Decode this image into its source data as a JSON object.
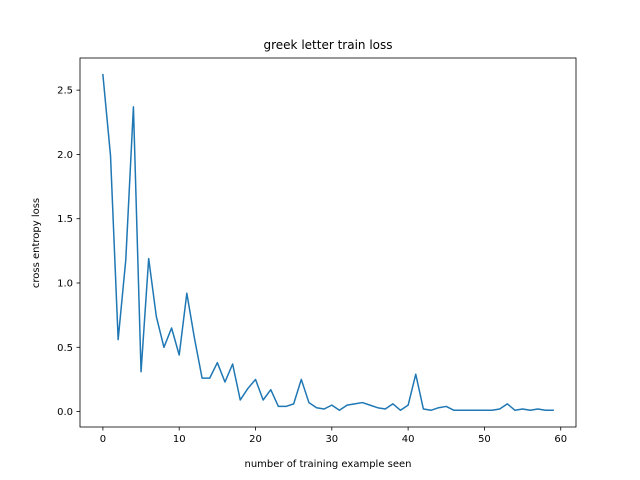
{
  "chart_data": {
    "type": "line",
    "title": "greek letter train loss",
    "xlabel": "number of training example seen",
    "ylabel": "cross entropy loss",
    "xlim": [
      -3,
      62
    ],
    "ylim": [
      -0.12,
      2.75
    ],
    "xticks": [
      0,
      10,
      20,
      30,
      40,
      50,
      60
    ],
    "yticks": [
      0.0,
      0.5,
      1.0,
      1.5,
      2.0,
      2.5
    ],
    "xtick_labels": [
      "0",
      "10",
      "20",
      "30",
      "40",
      "50",
      "60"
    ],
    "ytick_labels": [
      "0.0",
      "0.5",
      "1.0",
      "1.5",
      "2.0",
      "2.5"
    ],
    "grid": false,
    "series": [
      {
        "color": "#1f77b4",
        "x": [
          0,
          1,
          2,
          3,
          4,
          5,
          6,
          7,
          8,
          9,
          10,
          11,
          12,
          13,
          14,
          15,
          16,
          17,
          18,
          19,
          20,
          21,
          22,
          23,
          24,
          25,
          26,
          27,
          28,
          29,
          30,
          31,
          32,
          33,
          34,
          35,
          36,
          37,
          38,
          39,
          40,
          41,
          42,
          43,
          44,
          45,
          46,
          47,
          48,
          49,
          50,
          51,
          52,
          53,
          54,
          55,
          56,
          57,
          58,
          59
        ],
        "y": [
          2.62,
          1.99,
          0.56,
          1.18,
          2.37,
          0.31,
          1.19,
          0.74,
          0.5,
          0.65,
          0.44,
          0.92,
          0.57,
          0.26,
          0.26,
          0.38,
          0.23,
          0.37,
          0.09,
          0.18,
          0.25,
          0.09,
          0.17,
          0.04,
          0.04,
          0.06,
          0.25,
          0.07,
          0.03,
          0.02,
          0.05,
          0.01,
          0.05,
          0.06,
          0.07,
          0.05,
          0.03,
          0.02,
          0.06,
          0.01,
          0.05,
          0.29,
          0.02,
          0.01,
          0.03,
          0.04,
          0.01,
          0.01,
          0.01,
          0.01,
          0.01,
          0.01,
          0.02,
          0.06,
          0.01,
          0.02,
          0.01,
          0.02,
          0.01,
          0.01
        ]
      }
    ]
  }
}
